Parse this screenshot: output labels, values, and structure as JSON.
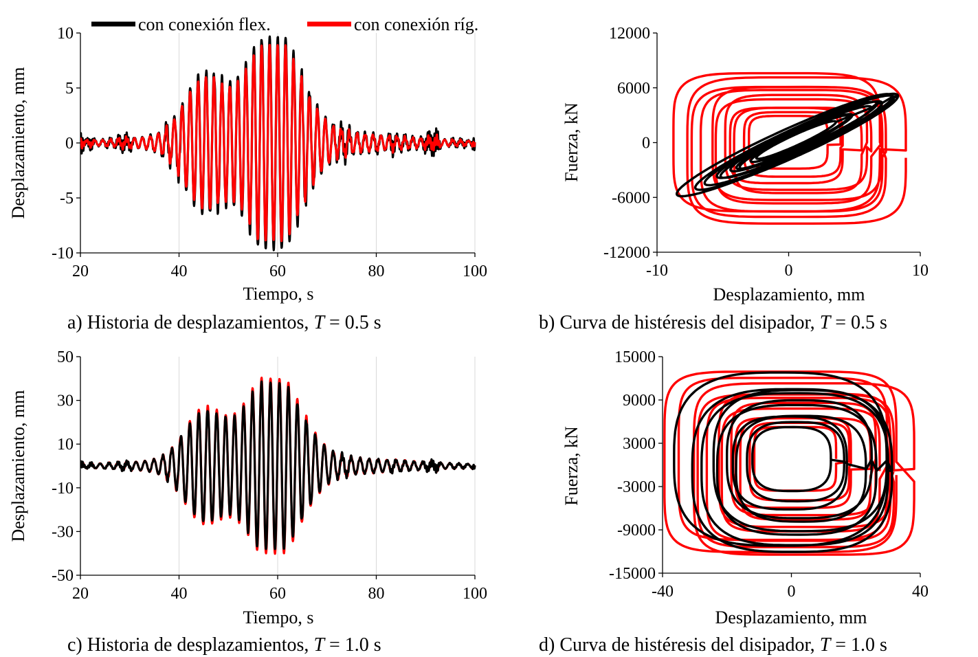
{
  "figure": {
    "legend": {
      "flex": "con conexión flex.",
      "rig": "con conexión ríg."
    },
    "colors": {
      "flex": "#000000",
      "rig": "#ff0000",
      "grid": "#d9d9d9",
      "axis": "#000000"
    }
  },
  "chart_data": [
    {
      "id": "a",
      "type": "line",
      "title": "a) Historia de desplazamientos, T = 0.5 s",
      "caption": {
        "prefix": "a) Historia de desplazamientos, ",
        "var": "T",
        "suffix": " = 0.5 s"
      },
      "xlabel": "Tiempo, s",
      "ylabel": "Desplazamiento, mm",
      "xlim": [
        20,
        100
      ],
      "ylim": [
        -10,
        10
      ],
      "xticks": [
        20,
        40,
        60,
        80,
        100
      ],
      "yticks": [
        -10,
        -5,
        0,
        5,
        10
      ],
      "xtick_labels": [
        "20",
        "40",
        "60",
        "80",
        "100"
      ],
      "ytick_labels": [
        "-10",
        "-5",
        "0",
        "5",
        "10"
      ],
      "grid": "vertical",
      "series": [
        {
          "name": "con conexión flex.",
          "color": "#000000",
          "signal": {
            "amp": 9.6,
            "freq": 0.62,
            "phase": 0.3,
            "noise": 1.0,
            "noiseFreq": 2.9
          }
        },
        {
          "name": "con conexión ríg.",
          "color": "#ff0000",
          "signal": {
            "amp": 8.9,
            "freq": 0.62,
            "phase": 0.35,
            "noise": 0.45,
            "noiseFreq": 2.3
          }
        }
      ]
    },
    {
      "id": "b",
      "type": "line",
      "title": "b) Curva de histéresis del disipador, T = 0.5 s",
      "caption": {
        "prefix": "b) Curva de histéresis del disipador, ",
        "var": "T",
        "suffix": " = 0.5 s"
      },
      "xlabel": "Desplazamiento, mm",
      "ylabel": "Fuerza, kN",
      "xlim": [
        -10,
        10
      ],
      "ylim": [
        -12000,
        12000
      ],
      "xticks": [
        -10,
        0,
        10
      ],
      "yticks": [
        -12000,
        -6000,
        0,
        6000,
        12000
      ],
      "xtick_labels": [
        "-10",
        "0",
        "10"
      ],
      "ytick_labels": [
        "-12000",
        "-6000",
        "0",
        "6000",
        "12000"
      ],
      "grid": "none",
      "series": [
        {
          "name": "con conexión ríg.",
          "color": "#ff0000",
          "loops": {
            "center": [
              -0.3,
              -500
            ],
            "wx": 8.3,
            "wy": 8000,
            "tilt": 0.0,
            "square": 5,
            "count": 11
          }
        },
        {
          "name": "con conexión flex.",
          "color": "#000000",
          "loops": {
            "center": [
              0.3,
              0
            ],
            "wx": 8.2,
            "wy": 1700,
            "tilt": 650,
            "square": 2,
            "count": 10
          }
        }
      ]
    },
    {
      "id": "c",
      "type": "line",
      "title": "c) Historia de desplazamientos, T = 1.0 s",
      "caption": {
        "prefix": "c) Historia de desplazamientos, ",
        "var": "T",
        "suffix": " = 1.0 s"
      },
      "xlabel": "Tiempo, s",
      "ylabel": "Desplazamiento, mm",
      "xlim": [
        20,
        100
      ],
      "ylim": [
        -50,
        50
      ],
      "xticks": [
        20,
        40,
        60,
        80,
        100
      ],
      "yticks": [
        -50,
        -30,
        -10,
        10,
        30,
        50
      ],
      "xtick_labels": [
        "20",
        "40",
        "60",
        "80",
        "100"
      ],
      "ytick_labels": [
        "-50",
        "-30",
        "-10",
        "10",
        "30",
        "50"
      ],
      "grid": "vertical",
      "series": [
        {
          "name": "con conexión ríg.",
          "color": "#ff0000",
          "signal": {
            "amp": 40,
            "freq": 0.55,
            "phase": 0.3,
            "noise": 1.2,
            "noiseFreq": 2.1
          }
        },
        {
          "name": "con conexión flex.",
          "color": "#000000",
          "signal": {
            "amp": 38,
            "freq": 0.55,
            "phase": 0.32,
            "noise": 1.8,
            "noiseFreq": 2.7
          }
        }
      ]
    },
    {
      "id": "d",
      "type": "line",
      "title": "d) Curva de histéresis del disipador, T = 1.0 s",
      "caption": {
        "prefix": "d) Curva de histéresis del disipador, ",
        "var": "T",
        "suffix": " = 1.0 s"
      },
      "xlabel": "Desplazamiento, mm",
      "ylabel": "Fuerza, kN",
      "xlim": [
        -40,
        40
      ],
      "ylim": [
        -15000,
        15000
      ],
      "xticks": [
        -40,
        0,
        40
      ],
      "yticks": [
        -15000,
        -9000,
        -3000,
        3000,
        9000,
        15000
      ],
      "xtick_labels": [
        "-40",
        "0",
        "40"
      ],
      "ytick_labels": [
        "-15000",
        "-9000",
        "-3000",
        "3000",
        "9000",
        "15000"
      ],
      "grid": "none",
      "series": [
        {
          "name": "con conexión ríg.",
          "color": "#ff0000",
          "loops": {
            "center": [
              0,
              0
            ],
            "wx": 36,
            "wy": 12500,
            "tilt": 0,
            "square": 6,
            "count": 12
          }
        },
        {
          "name": "con conexión flex.",
          "color": "#000000",
          "loops": {
            "center": [
              -1,
              0
            ],
            "wx": 33,
            "wy": 12000,
            "tilt": 0,
            "square": 3,
            "count": 10
          }
        }
      ]
    }
  ]
}
